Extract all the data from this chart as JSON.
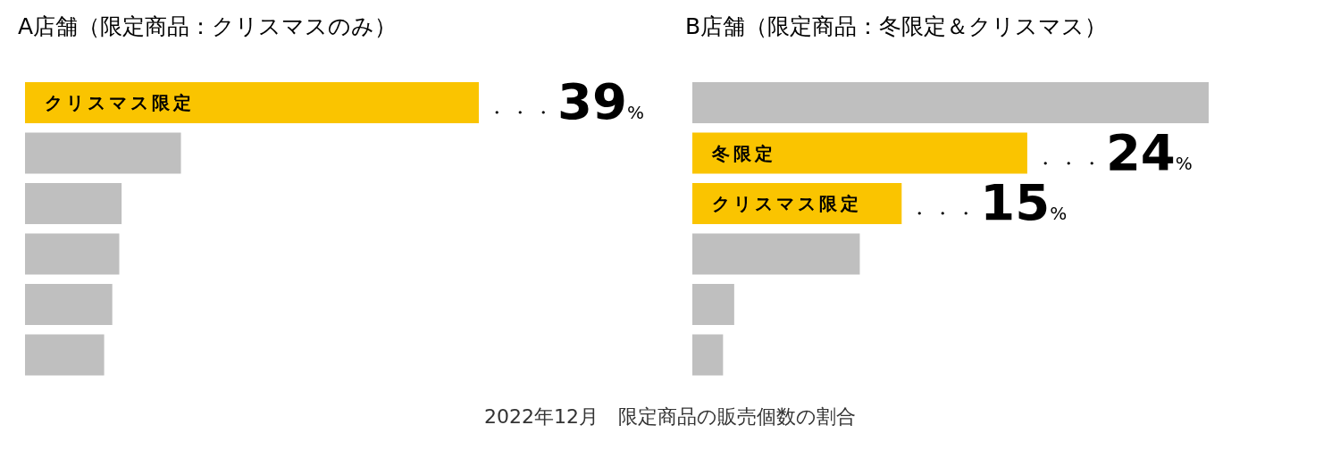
{
  "chart_data": [
    {
      "type": "bar",
      "orientation": "horizontal",
      "title": "A店舗（限定商品：クリスマスのみ）",
      "categories": [
        "クリスマス限定",
        null,
        null,
        null,
        null,
        null
      ],
      "values": [
        39,
        13.4,
        8.3,
        8.1,
        7.5,
        6.8
      ],
      "colors": [
        "#fac400",
        "#bfbfbf",
        "#bfbfbf",
        "#bfbfbf",
        "#bfbfbf",
        "#bfbfbf"
      ],
      "value_labels": [
        "・・・39%",
        null,
        null,
        null,
        null,
        null
      ],
      "annotations": [
        "2022年12月　限定商品の販売個数の割合"
      ]
    },
    {
      "type": "bar",
      "orientation": "horizontal",
      "title": "B店舗（限定商品：冬限定＆クリスマス）",
      "categories": [
        null,
        "冬限定",
        "クリスマス限定",
        null,
        null,
        null
      ],
      "values": [
        37,
        24,
        15,
        12,
        3,
        2.2
      ],
      "colors": [
        "#bfbfbf",
        "#fac400",
        "#fac400",
        "#bfbfbf",
        "#bfbfbf",
        "#bfbfbf"
      ],
      "value_labels": [
        null,
        "・・・24%",
        "・・・15%",
        null,
        null,
        null
      ]
    }
  ]
}
